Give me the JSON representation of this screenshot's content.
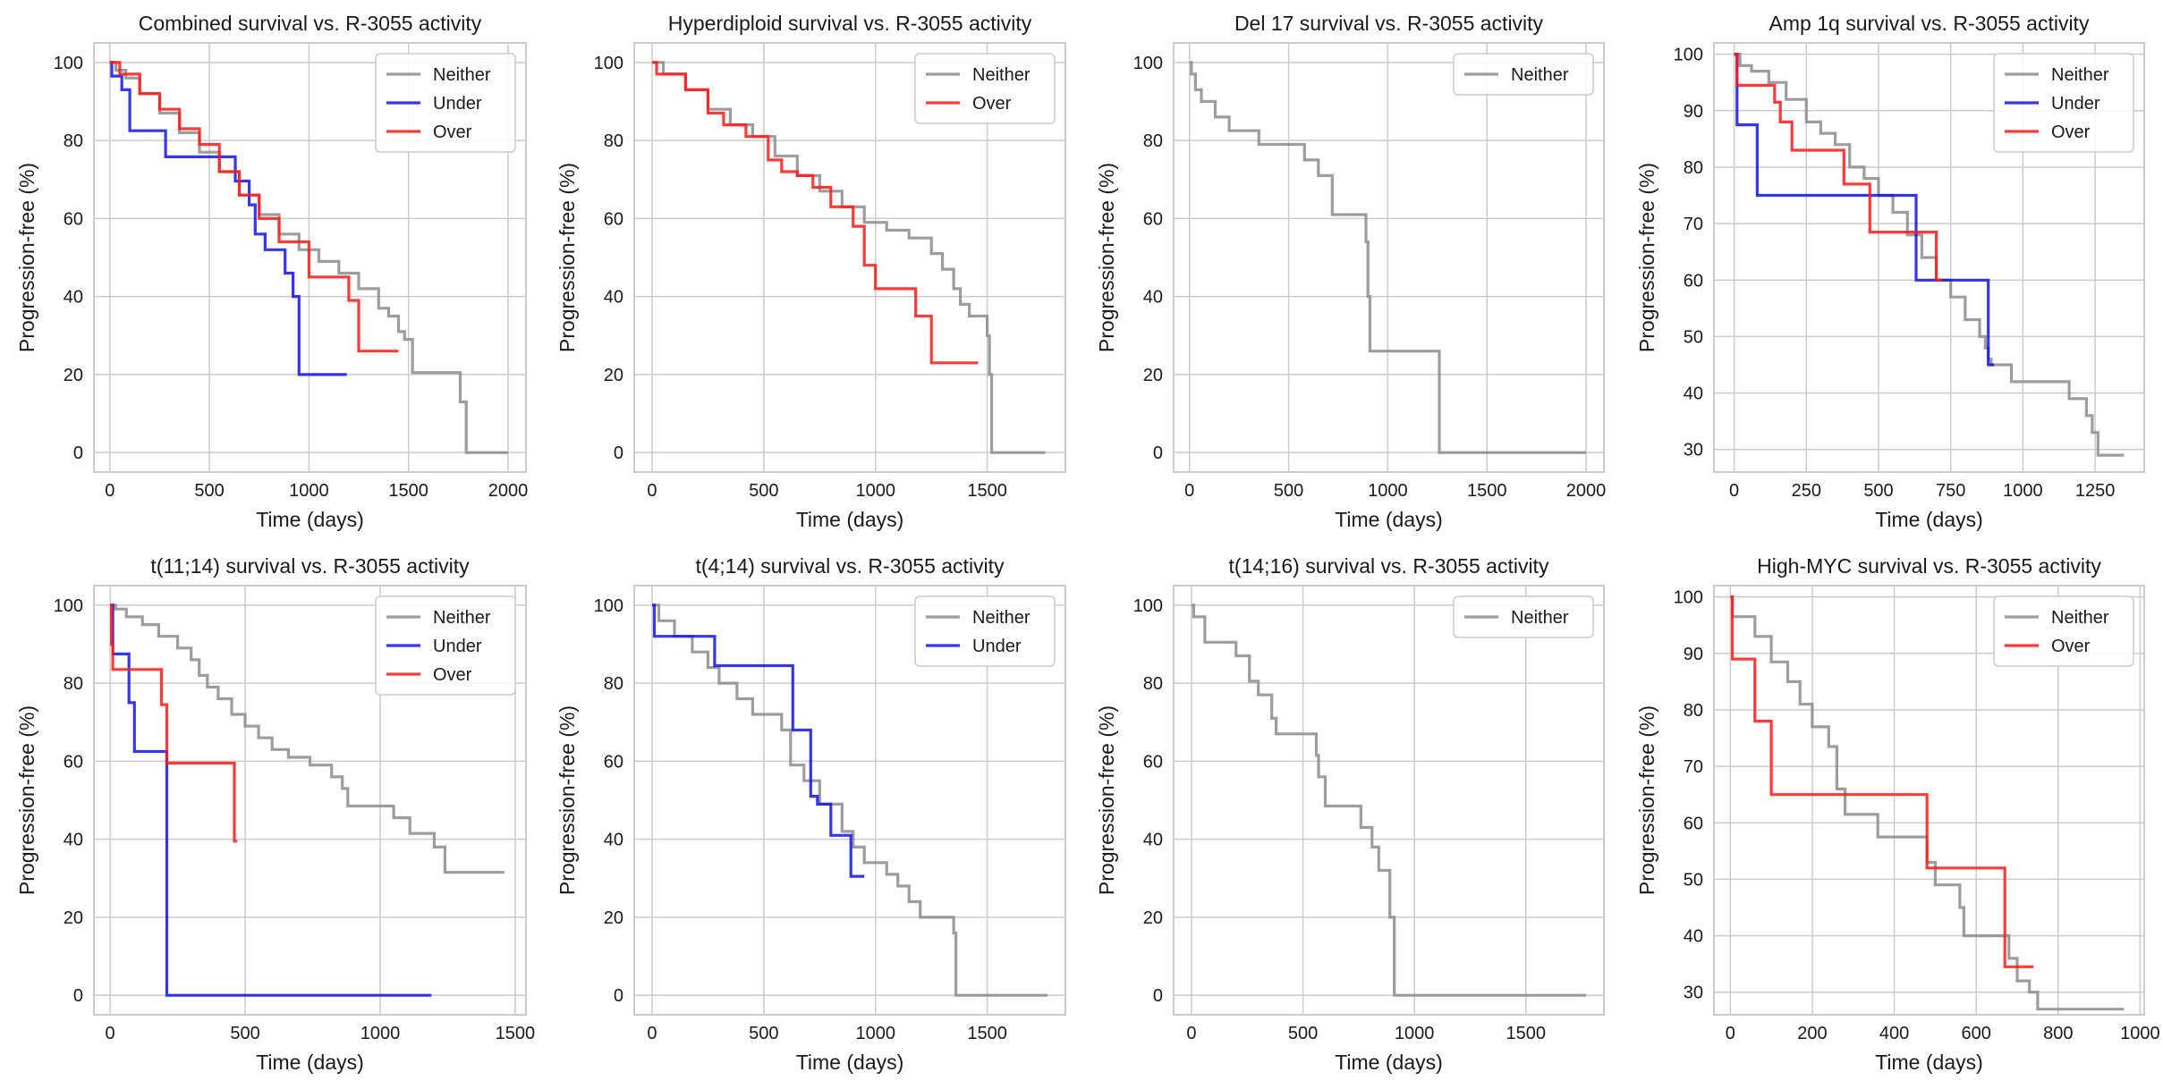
{
  "figure": {
    "colors": {
      "Neither": "#8c8c8c",
      "Under": "#1414e6",
      "Over": "#ff1a1a",
      "grid": "#cccccc",
      "frame": "#cccccc"
    }
  },
  "chart_data": [
    {
      "type": "line",
      "title": "Combined survival vs. R-3055 activity",
      "xlabel": "Time (days)",
      "ylabel": "Progression-free (%)",
      "xlim": [
        -80,
        2090
      ],
      "ylim": [
        -5,
        105
      ],
      "xticks": [
        0,
        500,
        1000,
        1500,
        2000
      ],
      "yticks": [
        0,
        20,
        40,
        60,
        80,
        100
      ],
      "grid": true,
      "legend_position": "top-right",
      "series": [
        {
          "name": "Neither",
          "x": [
            0,
            30,
            80,
            150,
            250,
            350,
            450,
            550,
            650,
            750,
            850,
            950,
            1050,
            1150,
            1250,
            1350,
            1400,
            1450,
            1480,
            1520,
            1750,
            1760,
            1790,
            2000
          ],
          "y": [
            100,
            98,
            96,
            92,
            87,
            82,
            77,
            72,
            66,
            61,
            56,
            52,
            49,
            46,
            42,
            37,
            35,
            31,
            29,
            20.5,
            20.5,
            13,
            0,
            0
          ]
        },
        {
          "name": "Under",
          "x": [
            0,
            10,
            60,
            100,
            280,
            620,
            630,
            700,
            730,
            780,
            880,
            920,
            950,
            1190
          ],
          "y": [
            100,
            96.5,
            93,
            82.5,
            75.8,
            75.8,
            69.6,
            63.5,
            56,
            52,
            46,
            40,
            20,
            20
          ]
        },
        {
          "name": "Over",
          "x": [
            0,
            50,
            150,
            250,
            350,
            450,
            550,
            650,
            750,
            850,
            1000,
            1200,
            1250,
            1450
          ],
          "y": [
            100,
            97,
            92,
            88,
            83,
            79,
            72,
            66,
            60,
            54,
            45,
            39,
            26,
            26
          ]
        }
      ]
    },
    {
      "type": "line",
      "title": "Hyperdiploid survival vs. R-3055 activity",
      "xlabel": "Time (days)",
      "ylabel": "Progression-free (%)",
      "xlim": [
        -80,
        1850
      ],
      "ylim": [
        -5,
        105
      ],
      "xticks": [
        0,
        500,
        1000,
        1500
      ],
      "yticks": [
        0,
        20,
        40,
        60,
        80,
        100
      ],
      "grid": true,
      "legend_position": "top-right",
      "series": [
        {
          "name": "Neither",
          "x": [
            0,
            50,
            150,
            250,
            350,
            450,
            550,
            650,
            750,
            850,
            950,
            1050,
            1150,
            1250,
            1300,
            1350,
            1380,
            1420,
            1450,
            1500,
            1510,
            1520,
            1760
          ],
          "y": [
            100,
            97,
            93,
            88,
            84,
            81,
            76,
            71,
            67,
            63,
            59,
            57,
            55,
            51,
            47,
            42,
            38,
            35,
            35,
            30,
            20,
            0,
            0
          ]
        },
        {
          "name": "Over",
          "x": [
            0,
            20,
            150,
            250,
            320,
            420,
            520,
            580,
            650,
            720,
            800,
            900,
            950,
            1000,
            1180,
            1250,
            1460
          ],
          "y": [
            100,
            97,
            93,
            87,
            84,
            81,
            75,
            72,
            71,
            68,
            63,
            58,
            48,
            42,
            35,
            23,
            23
          ]
        }
      ]
    },
    {
      "type": "line",
      "title": "Del 17 survival vs. R-3055 activity",
      "xlabel": "Time (days)",
      "ylabel": "Progression-free (%)",
      "xlim": [
        -80,
        2090
      ],
      "ylim": [
        -5,
        105
      ],
      "xticks": [
        0,
        500,
        1000,
        1500,
        2000
      ],
      "yticks": [
        0,
        20,
        40,
        60,
        80,
        100
      ],
      "grid": true,
      "legend_position": "top-right",
      "series": [
        {
          "name": "Neither",
          "x": [
            0,
            10,
            30,
            60,
            130,
            200,
            350,
            550,
            580,
            650,
            720,
            880,
            890,
            900,
            910,
            1250,
            1260,
            2000
          ],
          "y": [
            100,
            97,
            93,
            90,
            86,
            82.5,
            79,
            79,
            75,
            71,
            61,
            61,
            54,
            40,
            26,
            26,
            0,
            0
          ]
        }
      ]
    },
    {
      "type": "line",
      "title": "Amp 1q survival vs. R-3055 activity",
      "xlabel": "Time (days)",
      "ylabel": "Progression-free (%)",
      "xlim": [
        -70,
        1420
      ],
      "ylim": [
        26,
        102
      ],
      "xticks": [
        0,
        250,
        500,
        750,
        1000,
        1250
      ],
      "yticks": [
        30,
        40,
        50,
        60,
        70,
        80,
        90,
        100
      ],
      "grid": true,
      "legend_position": "top-right",
      "series": [
        {
          "name": "Neither",
          "x": [
            0,
            20,
            60,
            120,
            180,
            250,
            300,
            350,
            400,
            450,
            500,
            550,
            600,
            650,
            700,
            750,
            800,
            850,
            870,
            880,
            890,
            960,
            1160,
            1220,
            1240,
            1260,
            1350
          ],
          "y": [
            100,
            98,
            97,
            95,
            92,
            88,
            86,
            84,
            80,
            78,
            75,
            72,
            68,
            64,
            60,
            57,
            53,
            50,
            48,
            46,
            45,
            42,
            39,
            36,
            33,
            29,
            29
          ]
        },
        {
          "name": "Under",
          "x": [
            0,
            10,
            80,
            630,
            880,
            900
          ],
          "y": [
            100,
            87.5,
            75,
            60,
            45,
            45
          ]
        },
        {
          "name": "Over",
          "x": [
            0,
            10,
            140,
            160,
            200,
            380,
            470,
            700,
            720
          ],
          "y": [
            100,
            94.5,
            91.5,
            88,
            83,
            77,
            68.5,
            60,
            60
          ]
        }
      ]
    },
    {
      "type": "line",
      "title": "t(11;14) survival vs. R-3055 activity",
      "xlabel": "Time (days)",
      "ylabel": "Progression-free (%)",
      "xlim": [
        -60,
        1540
      ],
      "ylim": [
        -5,
        105
      ],
      "xticks": [
        0,
        500,
        1000,
        1500
      ],
      "yticks": [
        0,
        20,
        40,
        60,
        80,
        100
      ],
      "grid": true,
      "legend_position": "top-right",
      "series": [
        {
          "name": "Neither",
          "x": [
            0,
            20,
            60,
            120,
            180,
            250,
            300,
            330,
            360,
            400,
            450,
            500,
            550,
            600,
            660,
            740,
            820,
            860,
            880,
            1050,
            1110,
            1200,
            1240,
            1460
          ],
          "y": [
            100,
            99,
            97,
            95,
            92,
            89,
            86,
            82,
            79,
            76,
            72,
            69,
            66,
            63,
            61,
            59,
            56,
            53,
            48.5,
            45.5,
            41.5,
            38,
            31.5,
            31.5
          ]
        },
        {
          "name": "Under",
          "x": [
            0,
            10,
            70,
            90,
            210,
            1190
          ],
          "y": [
            100,
            87.5,
            75,
            62.5,
            0,
            0
          ]
        },
        {
          "name": "Over",
          "x": [
            0,
            5,
            10,
            190,
            210,
            460,
            470
          ],
          "y": [
            100,
            90,
            83.5,
            74.5,
            59.5,
            39.5,
            39.5
          ]
        }
      ]
    },
    {
      "type": "line",
      "title": "t(4;14) survival vs. R-3055 activity",
      "xlabel": "Time (days)",
      "ylabel": "Progression-free (%)",
      "xlim": [
        -80,
        1850
      ],
      "ylim": [
        -5,
        105
      ],
      "xticks": [
        0,
        500,
        1000,
        1500
      ],
      "yticks": [
        0,
        20,
        40,
        60,
        80,
        100
      ],
      "grid": true,
      "legend_position": "top-right",
      "series": [
        {
          "name": "Neither",
          "x": [
            0,
            30,
            100,
            180,
            250,
            300,
            380,
            450,
            580,
            620,
            680,
            750,
            850,
            900,
            950,
            1050,
            1100,
            1150,
            1200,
            1350,
            1360,
            1770
          ],
          "y": [
            100,
            96,
            92,
            88,
            84,
            80,
            76,
            72,
            68,
            59,
            55,
            49,
            42,
            38,
            34,
            31,
            28,
            24,
            20,
            16,
            0,
            0
          ]
        },
        {
          "name": "Under",
          "x": [
            0,
            10,
            280,
            630,
            710,
            740,
            800,
            890,
            950
          ],
          "y": [
            100,
            92,
            84.5,
            68,
            51,
            49,
            41,
            30.5,
            30.5
          ]
        }
      ]
    },
    {
      "type": "line",
      "title": "t(14;16) survival vs. R-3055 activity",
      "xlabel": "Time (days)",
      "ylabel": "Progression-free (%)",
      "xlim": [
        -80,
        1850
      ],
      "ylim": [
        -5,
        105
      ],
      "xticks": [
        0,
        500,
        1000,
        1500
      ],
      "yticks": [
        0,
        20,
        40,
        60,
        80,
        100
      ],
      "grid": true,
      "legend_position": "top-right",
      "series": [
        {
          "name": "Neither",
          "x": [
            0,
            10,
            60,
            200,
            260,
            300,
            360,
            380,
            550,
            560,
            570,
            600,
            760,
            810,
            840,
            890,
            910,
            1770
          ],
          "y": [
            100,
            97,
            90.5,
            87,
            80.5,
            77,
            71,
            67,
            67,
            61.5,
            56,
            48.5,
            43,
            38,
            32,
            20,
            0,
            0
          ]
        }
      ]
    },
    {
      "type": "line",
      "title": "High-MYC survival vs. R-3055 activity",
      "xlabel": "Time (days)",
      "ylabel": "Progression-free (%)",
      "xlim": [
        -40,
        1010
      ],
      "ylim": [
        26,
        102
      ],
      "xticks": [
        0,
        200,
        400,
        600,
        800,
        1000
      ],
      "yticks": [
        30,
        40,
        50,
        60,
        70,
        80,
        90,
        100
      ],
      "grid": true,
      "legend_position": "top-right",
      "series": [
        {
          "name": "Neither",
          "x": [
            0,
            5,
            60,
            100,
            140,
            170,
            200,
            240,
            260,
            280,
            360,
            480,
            500,
            560,
            570,
            680,
            700,
            730,
            750,
            960
          ],
          "y": [
            100,
            96.5,
            93,
            88.5,
            85,
            81,
            77,
            73.5,
            66,
            61.5,
            57.5,
            53,
            49,
            45,
            40,
            36,
            32,
            30,
            27,
            27
          ]
        },
        {
          "name": "Over",
          "x": [
            0,
            5,
            60,
            100,
            480,
            670,
            740
          ],
          "y": [
            100,
            89,
            78,
            65,
            52,
            34.5,
            34.5
          ]
        }
      ]
    }
  ]
}
